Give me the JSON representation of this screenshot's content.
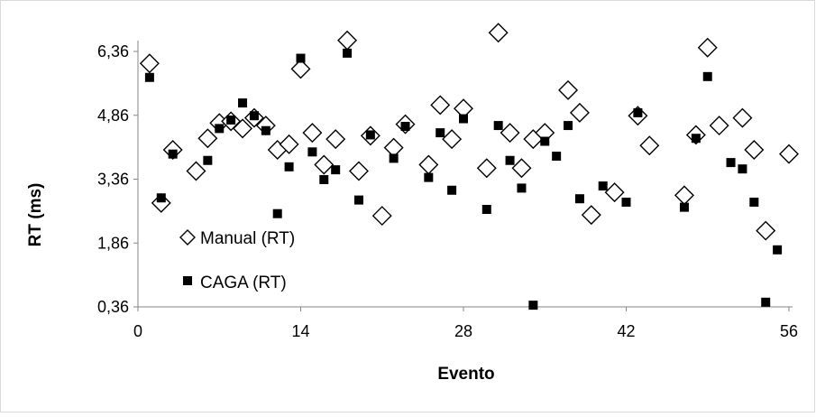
{
  "chart_data": {
    "type": "scatter",
    "title": "",
    "xlabel": "Evento",
    "ylabel": "RT (ms)",
    "xlim": [
      0,
      56
    ],
    "ylim": [
      0.36,
      6.36
    ],
    "x_ticks": [
      0,
      14,
      28,
      42,
      56
    ],
    "x_tick_labels": [
      "0",
      "14",
      "28",
      "42",
      "56"
    ],
    "y_ticks": [
      0.36,
      1.86,
      3.36,
      4.86,
      6.36
    ],
    "y_tick_labels": [
      "0,36",
      "1,86",
      "3,36",
      "4,86",
      "6,36"
    ],
    "grid": false,
    "legend_position": "left",
    "series": [
      {
        "name": "Manual (RT)",
        "marker": "diamond-open",
        "color": "#000000",
        "points": [
          [
            1,
            6.08
          ],
          [
            2,
            2.8
          ],
          [
            3,
            4.05
          ],
          [
            5,
            3.55
          ],
          [
            6,
            4.32
          ],
          [
            7,
            4.68
          ],
          [
            8,
            4.72
          ],
          [
            9,
            4.55
          ],
          [
            10,
            4.8
          ],
          [
            11,
            4.62
          ],
          [
            12,
            4.05
          ],
          [
            13,
            4.18
          ],
          [
            14,
            5.95
          ],
          [
            15,
            4.45
          ],
          [
            16,
            3.7
          ],
          [
            17,
            4.3
          ],
          [
            18,
            6.62
          ],
          [
            19,
            3.55
          ],
          [
            20,
            4.38
          ],
          [
            21,
            2.5
          ],
          [
            22,
            4.1
          ],
          [
            23,
            4.65
          ],
          [
            25,
            3.7
          ],
          [
            26,
            5.1
          ],
          [
            27,
            4.3
          ],
          [
            28,
            5.02
          ],
          [
            30,
            3.62
          ],
          [
            31,
            6.8
          ],
          [
            32,
            4.45
          ],
          [
            33,
            3.62
          ],
          [
            34,
            4.3
          ],
          [
            35,
            4.45
          ],
          [
            37,
            5.45
          ],
          [
            38,
            4.92
          ],
          [
            39,
            2.52
          ],
          [
            41,
            3.05
          ],
          [
            43,
            4.85
          ],
          [
            44,
            4.15
          ],
          [
            47,
            2.98
          ],
          [
            48,
            4.4
          ],
          [
            49,
            6.45
          ],
          [
            50,
            4.62
          ],
          [
            52,
            4.8
          ],
          [
            53,
            4.05
          ],
          [
            54,
            2.15
          ],
          [
            56,
            3.95
          ]
        ]
      },
      {
        "name": "CAGA (RT)",
        "marker": "square-filled",
        "color": "#000000",
        "points": [
          [
            1,
            5.75
          ],
          [
            2,
            2.92
          ],
          [
            3,
            3.95
          ],
          [
            6,
            3.8
          ],
          [
            7,
            4.55
          ],
          [
            8,
            4.75
          ],
          [
            9,
            5.15
          ],
          [
            10,
            4.85
          ],
          [
            11,
            4.5
          ],
          [
            12,
            2.55
          ],
          [
            13,
            3.65
          ],
          [
            14,
            6.2
          ],
          [
            15,
            4.0
          ],
          [
            16,
            3.35
          ],
          [
            17,
            3.58
          ],
          [
            18,
            6.32
          ],
          [
            19,
            2.87
          ],
          [
            20,
            4.4
          ],
          [
            22,
            3.85
          ],
          [
            23,
            4.6
          ],
          [
            25,
            3.4
          ],
          [
            26,
            4.45
          ],
          [
            27,
            3.1
          ],
          [
            28,
            4.78
          ],
          [
            30,
            2.65
          ],
          [
            31,
            4.62
          ],
          [
            32,
            3.8
          ],
          [
            33,
            3.15
          ],
          [
            34,
            0.4
          ],
          [
            35,
            4.25
          ],
          [
            36,
            3.9
          ],
          [
            37,
            4.62
          ],
          [
            38,
            2.9
          ],
          [
            40,
            3.2
          ],
          [
            42,
            2.82
          ],
          [
            43,
            4.92
          ],
          [
            47,
            2.7
          ],
          [
            48,
            4.32
          ],
          [
            49,
            5.77
          ],
          [
            51,
            3.75
          ],
          [
            52,
            3.6
          ],
          [
            53,
            2.82
          ],
          [
            54,
            0.47
          ],
          [
            55,
            1.7
          ]
        ]
      }
    ]
  }
}
